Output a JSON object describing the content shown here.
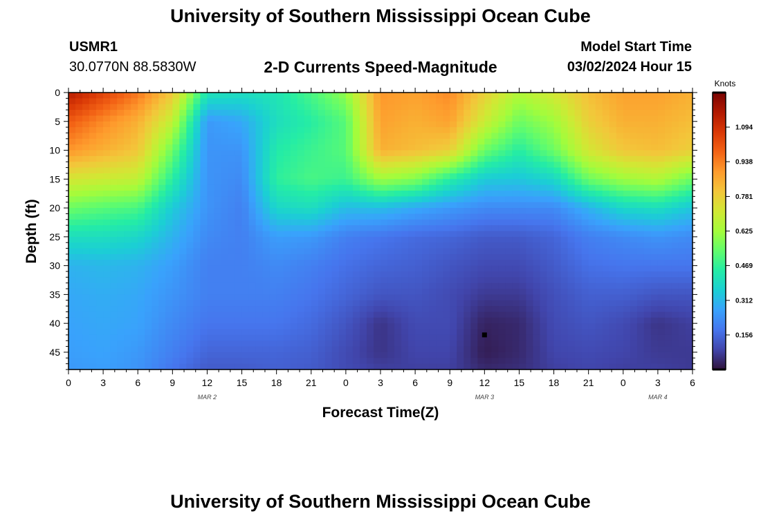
{
  "header": {
    "title": "University of Southern Mississippi Ocean Cube",
    "station": "USMR1",
    "coords": "30.0770N  88.5830W",
    "subtitle": "2-D Currents Speed-Magnitude",
    "model_start_label": "Model Start Time",
    "model_start_value": "03/02/2024 Hour 15"
  },
  "footer": {
    "title": "University of Southern Mississippi Ocean Cube"
  },
  "colors": {
    "ramp": [
      "#30123b",
      "#4145ab",
      "#4675ed",
      "#39a2fc",
      "#1bcfd4",
      "#24eca6",
      "#61fc6c",
      "#a4fc3b",
      "#d1e834",
      "#f3c63a",
      "#fe9b2d",
      "#f36315",
      "#d93806",
      "#b11901",
      "#7a0403"
    ]
  },
  "chart_data": {
    "type": "heatmap",
    "title": "2-D Currents Speed-Magnitude",
    "xlabel": "Forecast Time(Z)",
    "ylabel": "Depth (ft)",
    "colorbar_label": "Knots",
    "colorbar_ticks": [
      1.094,
      0.938,
      0.781,
      0.625,
      0.469,
      0.312,
      0.156
    ],
    "colorbar_tick_labels": [
      "1.094",
      "0.938",
      "0.781",
      "0.625",
      "0.469",
      "0.312",
      "0.156"
    ],
    "vmin": 0.0,
    "vmax": 1.25,
    "x_range_hours": [
      0,
      54
    ],
    "x_tick_hours": [
      0,
      3,
      6,
      9,
      12,
      15,
      18,
      21,
      24,
      27,
      30,
      33,
      36,
      39,
      42,
      45,
      48,
      51,
      54
    ],
    "x_tick_labels": [
      "0",
      "3",
      "6",
      "9",
      "12",
      "15",
      "18",
      "21",
      "0",
      "3",
      "6",
      "9",
      "12",
      "15",
      "18",
      "21",
      "0",
      "3",
      "6"
    ],
    "date_labels": [
      {
        "hour": 12,
        "label": "MAR 2"
      },
      {
        "hour": 36,
        "label": "MAR 3"
      },
      {
        "hour": 51,
        "label": "MAR 4"
      }
    ],
    "y_range_ft": [
      0,
      48
    ],
    "y_ticks": [
      0,
      5,
      10,
      15,
      20,
      25,
      30,
      35,
      40,
      45
    ],
    "y_tick_labels": [
      "0",
      "5",
      "10",
      "15",
      "20",
      "25",
      "30",
      "35",
      "40",
      "45"
    ],
    "times_hours": [
      0,
      3,
      6,
      9,
      12,
      15,
      18,
      21,
      24,
      27,
      30,
      33,
      36,
      39,
      42,
      45,
      48,
      51,
      54
    ],
    "depths_ft": [
      0,
      5,
      10,
      15,
      20,
      25,
      30,
      35,
      40,
      45,
      48
    ],
    "speed_knots": [
      [
        1.15,
        1.05,
        0.95,
        0.8,
        0.42,
        0.4,
        0.42,
        0.5,
        0.6,
        0.9,
        0.88,
        0.92,
        0.78,
        0.65,
        0.72,
        0.82,
        0.88,
        0.88,
        0.85
      ],
      [
        1.0,
        0.92,
        0.85,
        0.68,
        0.25,
        0.28,
        0.4,
        0.45,
        0.52,
        0.88,
        0.85,
        0.88,
        0.7,
        0.55,
        0.62,
        0.78,
        0.85,
        0.85,
        0.82
      ],
      [
        0.9,
        0.85,
        0.8,
        0.55,
        0.24,
        0.24,
        0.44,
        0.48,
        0.52,
        0.85,
        0.82,
        0.78,
        0.55,
        0.45,
        0.55,
        0.72,
        0.8,
        0.82,
        0.78
      ],
      [
        0.72,
        0.7,
        0.68,
        0.45,
        0.24,
        0.22,
        0.46,
        0.5,
        0.48,
        0.62,
        0.58,
        0.45,
        0.35,
        0.34,
        0.38,
        0.55,
        0.62,
        0.65,
        0.55
      ],
      [
        0.55,
        0.52,
        0.5,
        0.35,
        0.24,
        0.2,
        0.38,
        0.4,
        0.32,
        0.32,
        0.28,
        0.25,
        0.22,
        0.22,
        0.22,
        0.3,
        0.38,
        0.4,
        0.34
      ],
      [
        0.4,
        0.4,
        0.38,
        0.3,
        0.22,
        0.2,
        0.26,
        0.25,
        0.2,
        0.18,
        0.16,
        0.15,
        0.13,
        0.13,
        0.15,
        0.2,
        0.22,
        0.24,
        0.22
      ],
      [
        0.3,
        0.31,
        0.3,
        0.26,
        0.2,
        0.2,
        0.22,
        0.2,
        0.17,
        0.15,
        0.14,
        0.12,
        0.1,
        0.1,
        0.13,
        0.17,
        0.18,
        0.18,
        0.18
      ],
      [
        0.28,
        0.29,
        0.28,
        0.24,
        0.2,
        0.2,
        0.2,
        0.18,
        0.15,
        0.12,
        0.12,
        0.1,
        0.07,
        0.07,
        0.11,
        0.14,
        0.14,
        0.12,
        0.12
      ],
      [
        0.27,
        0.28,
        0.27,
        0.22,
        0.18,
        0.18,
        0.18,
        0.16,
        0.12,
        0.06,
        0.1,
        0.1,
        0.03,
        0.04,
        0.1,
        0.12,
        0.1,
        0.06,
        0.08
      ],
      [
        0.26,
        0.27,
        0.25,
        0.2,
        0.15,
        0.15,
        0.15,
        0.14,
        0.1,
        0.06,
        0.09,
        0.09,
        0.02,
        0.04,
        0.09,
        0.1,
        0.09,
        0.07,
        0.07
      ],
      [
        0.25,
        0.26,
        0.24,
        0.18,
        0.13,
        0.13,
        0.14,
        0.13,
        0.1,
        0.08,
        0.08,
        0.08,
        0.04,
        0.05,
        0.08,
        0.09,
        0.08,
        0.08,
        0.07
      ]
    ],
    "marker": {
      "hour": 36,
      "depth_ft": 42
    }
  }
}
